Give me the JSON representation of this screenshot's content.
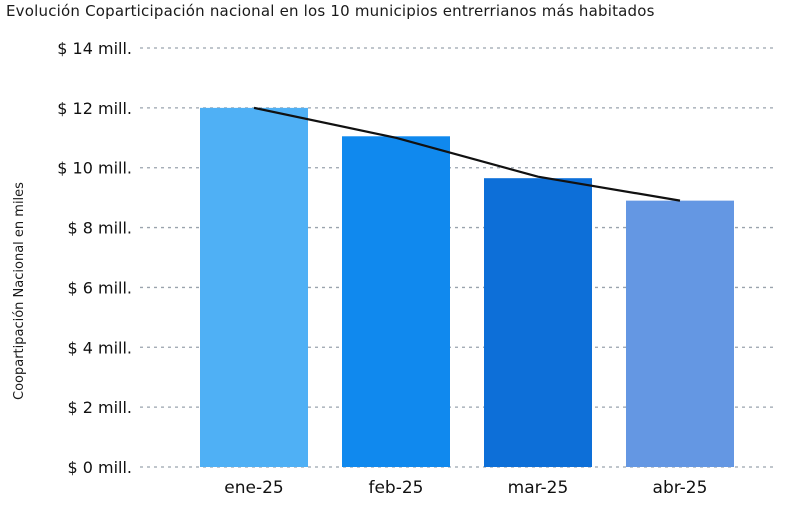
{
  "chart_data": {
    "type": "bar",
    "title": "Evolución Coparticipación nacional en los 10 municipios entrerrianos más habitados",
    "ylabel": "Coopartipación Nacional en miles",
    "xlabel": "",
    "categories": [
      "ene-25",
      "feb-25",
      "mar-25",
      "abr-25"
    ],
    "values": [
      12.0,
      11.05,
      9.65,
      8.9
    ],
    "trendline": [
      12.0,
      11.0,
      9.7,
      8.9
    ],
    "ylim": [
      0,
      14
    ],
    "yticks": [
      0,
      2,
      4,
      6,
      8,
      10,
      12,
      14
    ],
    "ytick_labels": [
      "$ 0 mill.",
      "$ 2 mill.",
      "$ 4 mill.",
      "$ 6 mill.",
      "$ 8 mill.",
      "$ 10 mill.",
      "$ 12 mill.",
      "$ 14 mill."
    ],
    "grid": true,
    "bar_colors": [
      "#4fb0f5",
      "#1089ee",
      "#0d6fd8",
      "#6497e3"
    ],
    "trendline_color": "#111111",
    "grid_color": "#9aa3ad"
  }
}
